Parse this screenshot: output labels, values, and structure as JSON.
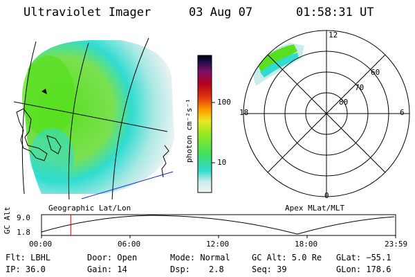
{
  "header": {
    "instrument": "Ultraviolet Imager",
    "date": "03 Aug 07",
    "time": "01:58:31 UT"
  },
  "colorbar": {
    "label": "photon cm⁻²s⁻¹",
    "ticks": [
      "100",
      "10"
    ]
  },
  "polar_plot": {
    "mlt_labels": {
      "top": "12",
      "bottom": "0",
      "left": "18",
      "right": "6"
    },
    "lat_labels": [
      "60",
      "70",
      "80"
    ],
    "caption": "Apex MLat/MLT"
  },
  "geo_plot": {
    "caption": "Geographic Lat/Lon"
  },
  "altitude_track": {
    "axis_label": "GC Alt",
    "ymax": "9.0",
    "ymin": "1.8",
    "time_ticks": [
      "00:00",
      "06:00",
      "12:00",
      "18:00",
      "23:59"
    ],
    "marker_time_hours": 1.98,
    "line_color": "#d00000"
  },
  "status": {
    "filter": "Flt: LBHL",
    "ip": "IP: 36.0",
    "door": "Door: Open",
    "gain": "Gain: 14",
    "mode": "Mode: Normal",
    "dsp_label": "Dsp:",
    "dsp_value": "2.8",
    "gc_alt": "GC Alt: 5.0 Re",
    "seq": "Seq: 39",
    "glat": "GLat: −55.1",
    "glon": "GLon: 178.6"
  },
  "colors": {
    "accent_green": "#58e020",
    "accent_cyan": "#30dcd0",
    "coast_blue": "#1a2ad0"
  }
}
